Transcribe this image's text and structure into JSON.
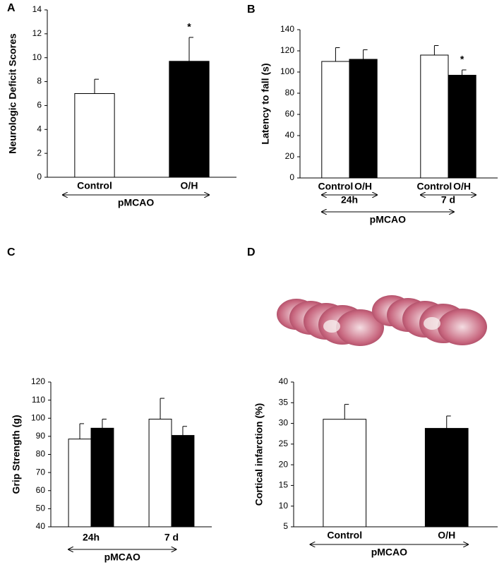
{
  "chart_data": [
    {
      "type": "bar",
      "panel": "A",
      "ylabel": "Neurologic Deficit Scores",
      "categories": [
        "Control",
        "O/H"
      ],
      "values": [
        7.0,
        9.7
      ],
      "errors": [
        1.2,
        2.0
      ],
      "colors": [
        "#ffffff",
        "#000000"
      ],
      "significance": [
        null,
        "*"
      ],
      "ylim": [
        0,
        14
      ],
      "yticks": [
        0,
        2,
        4,
        6,
        8,
        10,
        12,
        14
      ],
      "group_label": "pMCAO"
    },
    {
      "type": "grouped_bar",
      "panel": "B",
      "ylabel": "Latency to fall (s)",
      "categories": [
        "24h",
        "7 d"
      ],
      "series": [
        {
          "name": "Control",
          "color": "#ffffff",
          "values": [
            110,
            116
          ],
          "errors": [
            13,
            9
          ],
          "significance": [
            null,
            null
          ]
        },
        {
          "name": "O/H",
          "color": "#000000",
          "values": [
            112,
            97
          ],
          "errors": [
            9,
            5
          ],
          "significance": [
            null,
            "*"
          ]
        }
      ],
      "ylim": [
        0,
        140
      ],
      "yticks": [
        0,
        20,
        40,
        60,
        80,
        100,
        120,
        140
      ],
      "group_label": "pMCAO"
    },
    {
      "type": "grouped_bar",
      "panel": "C",
      "ylabel": "Grip Strength (g)",
      "categories": [
        "24h",
        "7 d"
      ],
      "series": [
        {
          "color": "#ffffff",
          "values": [
            88.5,
            99.5
          ],
          "errors": [
            8.5,
            11.5
          ]
        },
        {
          "color": "#000000",
          "values": [
            94.5,
            90.5
          ],
          "errors": [
            5,
            5
          ]
        }
      ],
      "ylim": [
        40,
        120
      ],
      "yticks": [
        40,
        50,
        60,
        70,
        80,
        90,
        100,
        110,
        120
      ],
      "group_label": "pMCAO"
    },
    {
      "type": "bar",
      "panel": "D",
      "ylabel": "Cortical infarction (%)",
      "categories": [
        "Control",
        "O/H"
      ],
      "values": [
        31,
        28.8
      ],
      "errors": [
        3.6,
        3.0
      ],
      "colors": [
        "#ffffff",
        "#000000"
      ],
      "ylim": [
        5,
        40
      ],
      "yticks": [
        5,
        10,
        15,
        20,
        25,
        30,
        35,
        40
      ],
      "group_label": "pMCAO"
    }
  ]
}
